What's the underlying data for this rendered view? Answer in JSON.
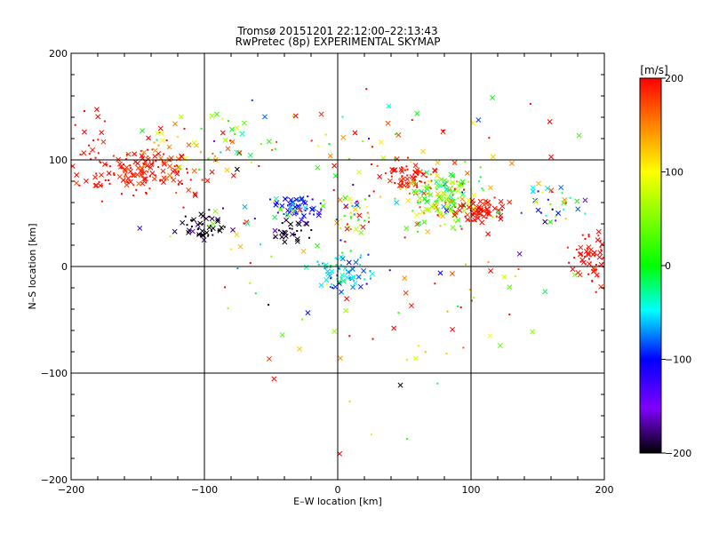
{
  "chart_data": {
    "type": "scatter",
    "title": "Tromsø 20151201 22:12:00–22:13:43",
    "subtitle": "RwPretec (8p) EXPERIMENTAL SKYMAP",
    "xlabel": "E–W location [km]",
    "ylabel": "N–S location [km]",
    "xlim": [
      -200,
      200
    ],
    "ylim": [
      -200,
      200
    ],
    "xticks": [
      -200,
      -100,
      0,
      100,
      200
    ],
    "yticks": [
      -200,
      -100,
      0,
      100,
      200
    ],
    "gridlines_x": [
      -100,
      0,
      100
    ],
    "gridlines_y": [
      -100,
      0,
      100
    ],
    "colorbar": {
      "label": "[m/s]",
      "range": [
        -200,
        200
      ],
      "ticks": [
        200,
        100,
        0,
        -100,
        -200
      ]
    },
    "markers": [
      "cross",
      "dot"
    ],
    "clusters": [
      {
        "x": -150,
        "y": 88,
        "sx": 22,
        "sy": 10,
        "n": 140,
        "v": 195,
        "sv": 15
      },
      {
        "x": -185,
        "y": 115,
        "sx": 8,
        "sy": 18,
        "n": 20,
        "v": 195,
        "sv": 10
      },
      {
        "x": -125,
        "y": 110,
        "sx": 12,
        "sy": 14,
        "n": 35,
        "v": 150,
        "sv": 60
      },
      {
        "x": -100,
        "y": 38,
        "sx": 9,
        "sy": 7,
        "n": 45,
        "v": -195,
        "sv": 10
      },
      {
        "x": -30,
        "y": 55,
        "sx": 8,
        "sy": 5,
        "n": 60,
        "v": -100,
        "sv": 25
      },
      {
        "x": -35,
        "y": 35,
        "sx": 8,
        "sy": 6,
        "n": 30,
        "v": -190,
        "sv": 15
      },
      {
        "x": 5,
        "y": -5,
        "sx": 10,
        "sy": 10,
        "n": 70,
        "v": -60,
        "sv": 25
      },
      {
        "x": 10,
        "y": 50,
        "sx": 10,
        "sy": 10,
        "n": 50,
        "v": 60,
        "sv": 110
      },
      {
        "x": 55,
        "y": 85,
        "sx": 10,
        "sy": 8,
        "n": 60,
        "v": 195,
        "sv": 10
      },
      {
        "x": 80,
        "y": 65,
        "sx": 14,
        "sy": 12,
        "n": 160,
        "v": 60,
        "sv": 70
      },
      {
        "x": 108,
        "y": 52,
        "sx": 8,
        "sy": 6,
        "n": 70,
        "v": 195,
        "sv": 10
      },
      {
        "x": 160,
        "y": 60,
        "sx": 12,
        "sy": 12,
        "n": 35,
        "v": -60,
        "sv": 110
      },
      {
        "x": 190,
        "y": 5,
        "sx": 9,
        "sy": 12,
        "n": 70,
        "v": 195,
        "sv": 10
      },
      {
        "x": 30,
        "y": 110,
        "sx": 60,
        "sy": 25,
        "n": 60,
        "v": 100,
        "sv": 110
      },
      {
        "x": 40,
        "y": -60,
        "sx": 50,
        "sy": 40,
        "n": 40,
        "v": 100,
        "sv": 110
      },
      {
        "x": -60,
        "y": 40,
        "sx": 40,
        "sy": 40,
        "n": 40,
        "v": 50,
        "sv": 120
      },
      {
        "x": 100,
        "y": -20,
        "sx": 40,
        "sy": 40,
        "n": 25,
        "v": 120,
        "sv": 90
      },
      {
        "x": -90,
        "y": 120,
        "sx": 20,
        "sy": 15,
        "n": 25,
        "v": 100,
        "sv": 110
      }
    ]
  }
}
